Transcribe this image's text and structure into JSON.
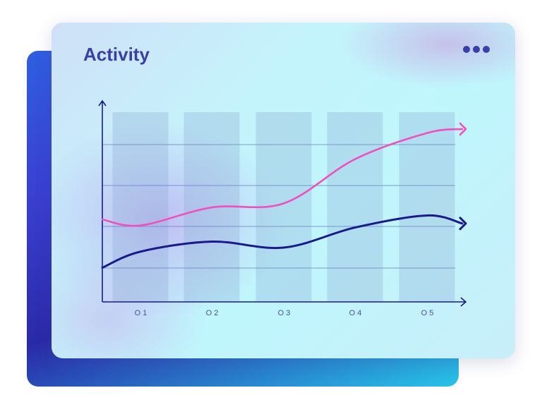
{
  "card": {
    "title": "Activity",
    "menu_icon": "more-horizontal-icon"
  },
  "colors": {
    "accent": "#3a3fa8",
    "series_pink": "#f04fc0",
    "series_navy": "#1a1a8c"
  },
  "chart_data": {
    "type": "line",
    "title": "Activity",
    "categories": [
      "O1",
      "O2",
      "O3",
      "O4",
      "O5"
    ],
    "ylim": [
      0,
      100
    ],
    "grid": true,
    "series": [
      {
        "color": "#f04fc0",
        "values": [
          38,
          47,
          49,
          71,
          84
        ]
      },
      {
        "color": "#1a1a8c",
        "values": [
          25,
          30,
          27,
          37,
          43
        ]
      }
    ],
    "xlabel": "",
    "ylabel": ""
  }
}
